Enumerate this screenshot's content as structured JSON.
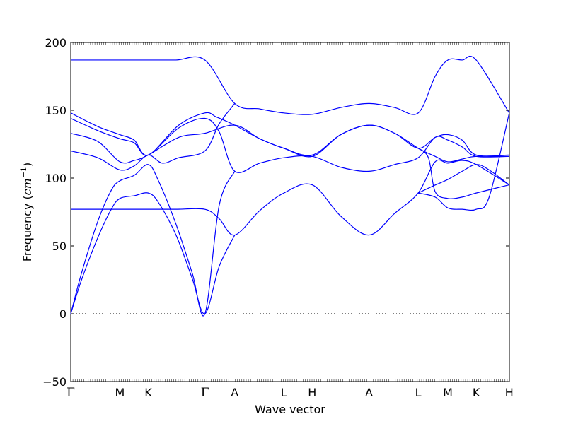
{
  "chart_data": {
    "type": "line",
    "title": "",
    "xlabel": "Wave vector",
    "ylabel": "Frequency (cm⁻¹)",
    "ylabel_parts": {
      "prefix": "Frequency (",
      "unit": "cm",
      "exponent": "−1",
      "suffix": ")"
    },
    "ylim": [
      -50,
      200
    ],
    "yticks": [
      -50,
      0,
      50,
      100,
      150,
      200
    ],
    "ytick_labels": [
      "−50",
      "0",
      "50",
      "100",
      "150",
      "200"
    ],
    "xlim": [
      0,
      3.25
    ],
    "special_points": [
      {
        "label": "Γ",
        "x": 0.0
      },
      {
        "label": "M",
        "x": 0.364
      },
      {
        "label": "K",
        "x": 0.574
      },
      {
        "label": "Γ",
        "x": 0.994
      },
      {
        "label": "A",
        "x": 1.215
      },
      {
        "label": "L",
        "x": 1.579
      },
      {
        "label": "H",
        "x": 1.789
      },
      {
        "label": "A",
        "x": 2.21
      },
      {
        "label": "L",
        "x": 2.574
      },
      {
        "label": "M",
        "x": 2.794
      },
      {
        "label": "K",
        "x": 3.004
      },
      {
        "label": "H",
        "x": 3.249
      }
    ],
    "zero_line": {
      "y": 0,
      "style": "dotted"
    },
    "grid": false,
    "legend": "none",
    "line_color": "#0000ff",
    "branches": [
      {
        "x": [
          0.0,
          0.19,
          0.364,
          0.47,
          0.574,
          0.78,
          0.994,
          1.215,
          1.4,
          1.579,
          1.789,
          2.0,
          2.21,
          2.4,
          2.574,
          2.7,
          2.794,
          2.9,
          3.004,
          3.249
        ],
        "y": [
          187,
          187,
          187,
          187,
          187,
          187,
          187,
          155,
          151,
          148,
          147,
          152,
          155,
          152,
          148,
          175,
          187,
          187,
          187,
          148
        ]
      },
      {
        "x": [
          0.0,
          0.2,
          0.364,
          0.47,
          0.574,
          0.8,
          0.994,
          1.08,
          1.215,
          1.4,
          1.579,
          1.789,
          2.0,
          2.21,
          2.4,
          2.574,
          2.7,
          2.794,
          2.9,
          3.004,
          3.249
        ],
        "y": [
          148,
          138,
          132,
          128,
          117,
          139,
          148,
          145,
          139,
          129,
          122,
          116,
          132,
          139,
          133,
          122,
          130,
          132,
          128,
          117,
          117
        ]
      },
      {
        "x": [
          0.0,
          0.2,
          0.364,
          0.47,
          0.574,
          0.8,
          0.994,
          1.1,
          1.215,
          1.4,
          1.579,
          1.789,
          2.0,
          2.21,
          2.4,
          2.574,
          2.7,
          2.794,
          2.9,
          3.004,
          3.249
        ],
        "y": [
          144,
          135,
          129,
          126,
          117,
          137,
          144,
          134,
          105,
          111,
          115,
          116,
          108,
          105,
          110,
          115,
          130,
          128,
          123,
          116,
          116
        ]
      },
      {
        "x": [
          0.0,
          0.2,
          0.364,
          0.47,
          0.574,
          0.8,
          0.994,
          1.215,
          1.4,
          1.579,
          1.789,
          2.0,
          2.21,
          2.4,
          2.574,
          2.7,
          2.794,
          2.9,
          3.004,
          3.249
        ],
        "y": [
          133,
          127,
          112,
          113,
          117,
          130,
          133,
          139,
          129,
          122,
          117,
          132,
          139,
          133,
          122,
          116,
          112,
          114,
          116,
          116
        ]
      },
      {
        "x": [
          0.0,
          0.2,
          0.364,
          0.47,
          0.574,
          0.68,
          0.8,
          0.994,
          1.1,
          1.215
        ],
        "y": [
          120,
          115,
          106,
          109,
          117,
          111,
          115,
          120,
          140,
          155
        ]
      },
      {
        "x": [
          0.0,
          0.19,
          0.364,
          0.47,
          0.574,
          0.78,
          0.994,
          1.1,
          1.215,
          1.4,
          1.579,
          1.789,
          2.0,
          2.21,
          2.4,
          2.574,
          2.7,
          2.794,
          2.9,
          3.004,
          3.249
        ],
        "y": [
          77,
          77,
          77,
          77,
          77,
          77,
          77,
          70,
          58,
          76,
          89,
          95,
          72,
          58,
          74,
          89,
          112,
          111,
          113,
          110,
          95
        ]
      },
      {
        "x": [
          0.0,
          0.08,
          0.2,
          0.3,
          0.364,
          0.47,
          0.574,
          0.65,
          0.78,
          0.9,
          0.994,
          1.1,
          1.215
        ],
        "y": [
          0,
          30,
          68,
          91,
          98,
          102,
          110,
          98,
          66,
          30,
          0,
          80,
          105
        ]
      },
      {
        "x": [
          0.0,
          0.08,
          0.2,
          0.3,
          0.364,
          0.47,
          0.574,
          0.65,
          0.78,
          0.9,
          0.994,
          1.1,
          1.215
        ],
        "y": [
          0,
          25,
          56,
          77,
          85,
          87,
          89,
          82,
          58,
          26,
          0,
          35,
          58
        ]
      },
      {
        "x": [
          2.574,
          2.68,
          2.794,
          2.9,
          3.004,
          3.1,
          3.249
        ],
        "y": [
          89,
          94,
          99,
          105,
          110,
          106,
          95
        ]
      },
      {
        "x": [
          2.574,
          2.7,
          2.794,
          2.9,
          3.004,
          3.1,
          3.249
        ],
        "y": [
          89,
          86,
          78,
          77,
          77,
          86,
          148
        ]
      },
      {
        "x": [
          2.574,
          2.65,
          2.7,
          2.794,
          2.9,
          3.004,
          3.249
        ],
        "y": [
          122,
          115,
          90,
          85,
          86,
          89,
          95
        ]
      }
    ]
  }
}
